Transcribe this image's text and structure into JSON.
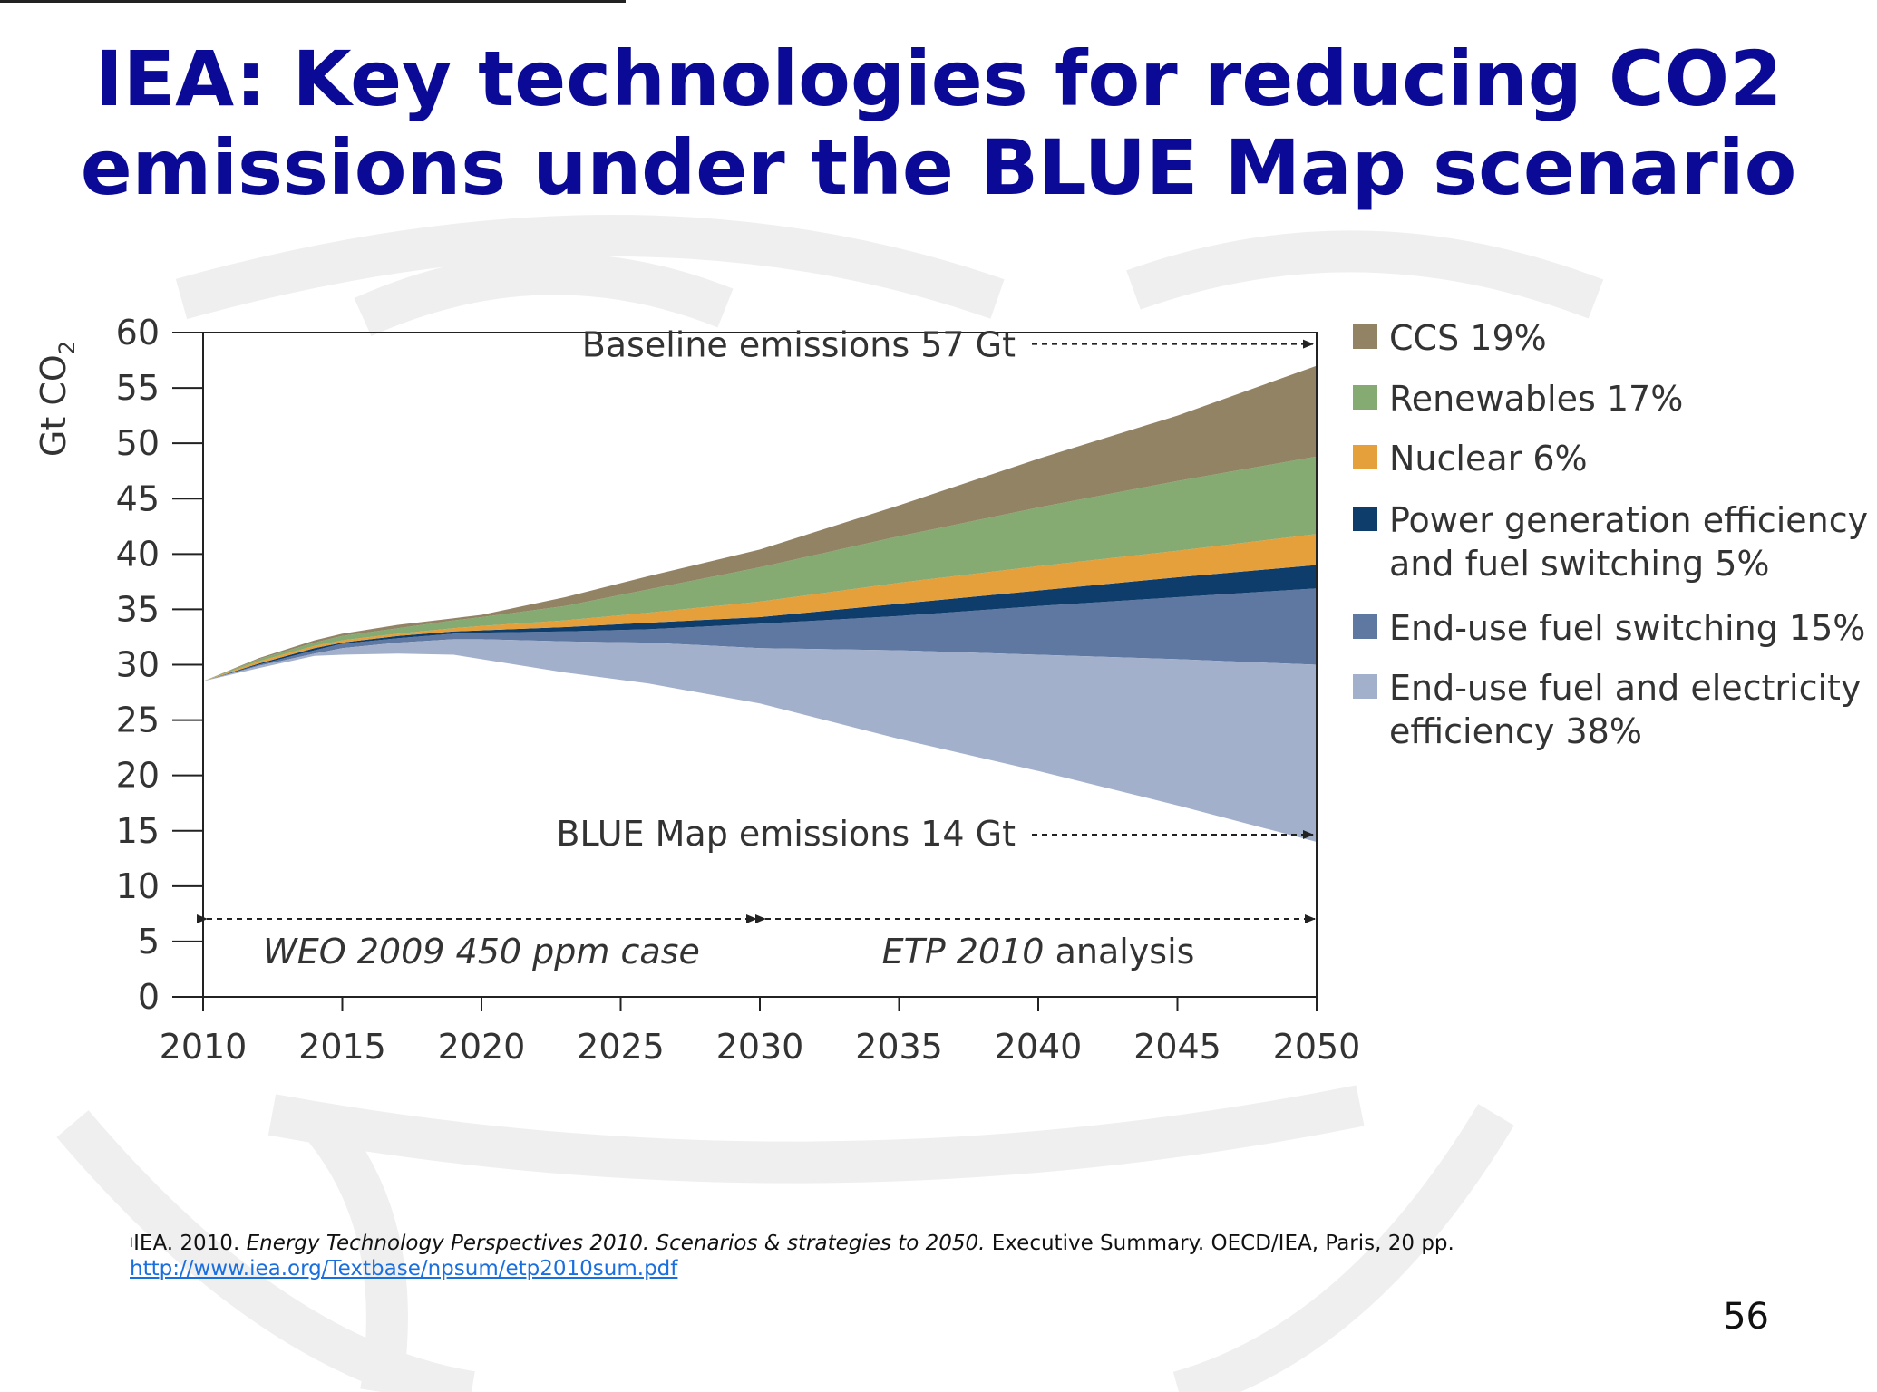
{
  "slide": {
    "title": "IEA: Key technologies for reducing CO2 emissions under the BLUE Map scenario",
    "page_number": "56",
    "reference": {
      "marker": "I",
      "lead": "IEA. 2010. ",
      "italic": "Energy Technology Perspectives 2010. Scenarios & strategies to 2050.",
      "rest": " Executive Summary. OECD/IEA, Paris, 20 pp.",
      "url": "http://www.iea.org/Textbase/npsum/etp2010sum.pdf"
    }
  },
  "chart_data": {
    "type": "area",
    "title": "",
    "xlabel": "",
    "ylabel": "Gt CO",
    "ylabel_subscript": "2",
    "xlim": [
      2010,
      2050
    ],
    "ylim": [
      0,
      60
    ],
    "x_ticks": [
      2010,
      2015,
      2020,
      2025,
      2030,
      2035,
      2040,
      2045,
      2050
    ],
    "y_ticks": [
      0,
      5,
      10,
      15,
      20,
      25,
      30,
      35,
      40,
      45,
      50,
      55,
      60
    ],
    "grid": false,
    "legend_position": "right",
    "x": [
      2010,
      2012,
      2014,
      2015,
      2017,
      2019,
      2020,
      2023,
      2026,
      2030,
      2035,
      2040,
      2045,
      2050
    ],
    "boundaries": [
      [
        28.5,
        29.7,
        30.8,
        30.9,
        31.0,
        30.9,
        30.5,
        29.3,
        28.3,
        26.5,
        23.3,
        20.4,
        17.3,
        14.0
      ],
      [
        28.5,
        29.9,
        31.0,
        31.5,
        32.0,
        32.3,
        32.3,
        32.1,
        32.0,
        31.5,
        31.3,
        30.9,
        30.5,
        30.0
      ],
      [
        28.5,
        30.0,
        31.3,
        31.9,
        32.4,
        32.8,
        32.9,
        33.0,
        33.2,
        33.7,
        34.4,
        35.3,
        36.1,
        36.9
      ],
      [
        28.5,
        30.1,
        31.5,
        32.0,
        32.6,
        33.0,
        33.1,
        33.4,
        33.8,
        34.3,
        35.5,
        36.7,
        37.9,
        39.0
      ],
      [
        28.5,
        30.3,
        31.7,
        32.2,
        32.8,
        33.3,
        33.5,
        34.0,
        34.7,
        35.7,
        37.4,
        38.9,
        40.3,
        41.8
      ],
      [
        28.5,
        30.5,
        32.0,
        32.6,
        33.3,
        34.0,
        34.3,
        35.3,
        36.8,
        38.8,
        41.6,
        44.2,
        46.6,
        48.8
      ],
      [
        28.5,
        30.6,
        32.2,
        32.8,
        33.6,
        34.2,
        34.5,
        36.1,
        38.0,
        40.4,
        44.4,
        48.6,
        52.5,
        57.0
      ]
    ],
    "series": [
      {
        "name": "End-use fuel and electricity efficiency 38%",
        "lines": [
          "End-use fuel and electricity",
          "efficiency 38%"
        ],
        "color": "#a3b0cb"
      },
      {
        "name": "End-use fuel switching 15%",
        "lines": [
          "End-use fuel switching 15%"
        ],
        "color": "#5f78a2"
      },
      {
        "name": "Power generation efficiency and fuel switching 5%",
        "lines": [
          "Power generation efficiency",
          "and fuel switching 5%"
        ],
        "color": "#0f3d6b"
      },
      {
        "name": "Nuclear 6%",
        "lines": [
          "Nuclear 6%"
        ],
        "color": "#e5a03c"
      },
      {
        "name": "Renewables 17%",
        "lines": [
          "Renewables 17%"
        ],
        "color": "#86ab72"
      },
      {
        "name": "CCS 19%",
        "lines": [
          "CCS 19%"
        ],
        "color": "#938365"
      }
    ],
    "annotations": {
      "baseline": {
        "text": "Baseline emissions 57 Gt",
        "value": 57
      },
      "blue_map": {
        "text": "BLUE Map emissions 14 Gt",
        "value": 14
      },
      "period_weo": {
        "text": "WEO 2009 450 ppm case",
        "from": 2010,
        "to": 2030
      },
      "period_etp_italic": "ETP 2010",
      "period_etp_rest": " analysis",
      "period_etp": {
        "from": 2030,
        "to": 2050
      }
    }
  }
}
